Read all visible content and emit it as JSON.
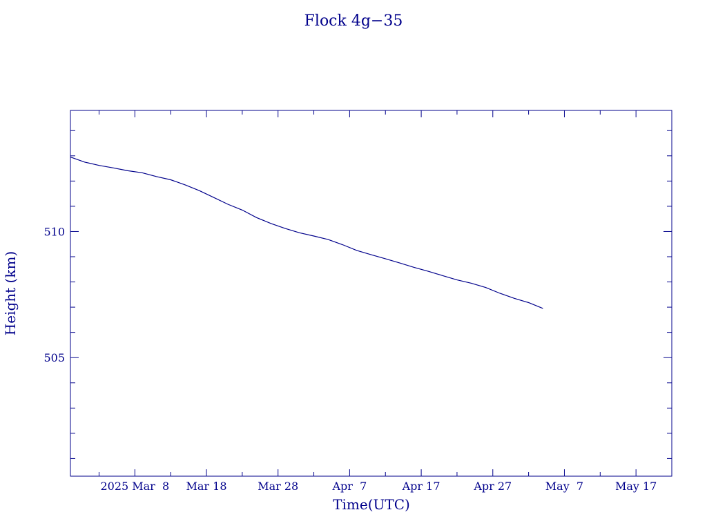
{
  "chart_data": {
    "type": "line",
    "title": "Flock 4g−35",
    "xlabel": "Time(UTC)",
    "ylabel": "Height (km)",
    "x_ticks": [
      "2025 Mar  8",
      "Mar 18",
      "Mar 28",
      "Apr  7",
      "Apr 17",
      "Apr 27",
      "May  7",
      "May 17"
    ],
    "x_tick_dates": [
      "2025-03-08",
      "2025-03-18",
      "2025-03-28",
      "2025-04-07",
      "2025-04-17",
      "2025-04-27",
      "2025-05-07",
      "2025-05-17"
    ],
    "y_ticks": [
      505,
      510
    ],
    "xlim": [
      "2025-02-27",
      "2025-05-22"
    ],
    "ylim": [
      500.3,
      514.8
    ],
    "grid": false,
    "colors": {
      "line": "#00008b",
      "text": "#00008b",
      "frame": "#00008b"
    },
    "series": [
      {
        "x": [
          "2025-02-27",
          "2025-03-01",
          "2025-03-03",
          "2025-03-05",
          "2025-03-07",
          "2025-03-09",
          "2025-03-11",
          "2025-03-13",
          "2025-03-15",
          "2025-03-17",
          "2025-03-19",
          "2025-03-21",
          "2025-03-23",
          "2025-03-25",
          "2025-03-27",
          "2025-03-29",
          "2025-03-31",
          "2025-04-02",
          "2025-04-04",
          "2025-04-06",
          "2025-04-08",
          "2025-04-10",
          "2025-04-12",
          "2025-04-14",
          "2025-04-16",
          "2025-04-18",
          "2025-04-20",
          "2025-04-22",
          "2025-04-24",
          "2025-04-26",
          "2025-04-28",
          "2025-04-30",
          "2025-05-02",
          "2025-05-04"
        ],
        "y": [
          512.95,
          512.75,
          512.62,
          512.52,
          512.41,
          512.33,
          512.18,
          512.05,
          511.85,
          511.62,
          511.35,
          511.08,
          510.85,
          510.55,
          510.32,
          510.12,
          509.95,
          509.82,
          509.68,
          509.48,
          509.25,
          509.08,
          508.92,
          508.75,
          508.58,
          508.42,
          508.25,
          508.08,
          507.95,
          507.78,
          507.55,
          507.35,
          507.18,
          506.95
        ]
      }
    ]
  }
}
